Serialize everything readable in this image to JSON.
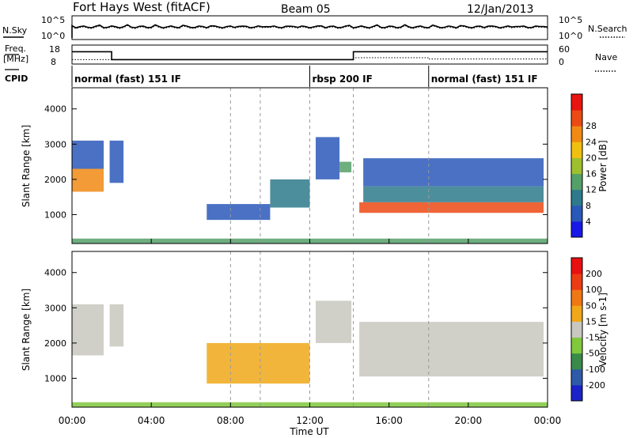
{
  "header": {
    "station": "Fort Hays West (fitACF)",
    "beam": "Beam 05",
    "date": "12/Jan/2013"
  },
  "chart_data": [
    {
      "type": "line",
      "panel": "noise",
      "left_label": "N.Sky",
      "left_ticks": [
        "10^5",
        "10^0"
      ],
      "right_label": "N.Search",
      "right_ticks": [
        "10^5",
        "10^0"
      ],
      "series": [
        {
          "name": "N.Sky",
          "style": "solid"
        },
        {
          "name": "N.Search",
          "style": "dotted"
        }
      ]
    },
    {
      "type": "line",
      "panel": "frequency",
      "left_label": "Freq.",
      "left_unit": "[MHz]",
      "left_ticks": [
        18,
        8
      ],
      "right_label": "Nave",
      "right_ticks": [
        60,
        0
      ],
      "freq_steps": [
        {
          "t0": 0.0,
          "t1": 2.0,
          "f": 14.5
        },
        {
          "t0": 2.0,
          "t1": 12.0,
          "f": 10.3
        },
        {
          "t0": 12.0,
          "t1": 14.2,
          "f": 10.3
        },
        {
          "t0": 14.2,
          "t1": 24.0,
          "f": 14.5
        }
      ],
      "nave_steps": [
        {
          "t0": 0.0,
          "t1": 2.0,
          "v": 14
        },
        {
          "t0": 2.0,
          "t1": 14.2,
          "v": 14
        },
        {
          "t0": 14.2,
          "t1": 18.0,
          "v": 20
        },
        {
          "t0": 18.0,
          "t1": 24.0,
          "v": 16
        }
      ]
    },
    {
      "type": "table",
      "panel": "cpid",
      "label": "CPID",
      "segments": [
        {
          "start": 0,
          "text": "normal (fast) 151 IF"
        },
        {
          "start": 12,
          "text": "rbsp 200 IF"
        },
        {
          "start": 18,
          "text": "normal (fast) 151 IF"
        }
      ]
    },
    {
      "type": "heatmap",
      "panel": "power",
      "ylabel": "Slant Range [km]",
      "yticks": [
        1000,
        2000,
        3000,
        4000
      ],
      "ylim": [
        180,
        4600
      ],
      "xlim": [
        0,
        24
      ],
      "colorbar": {
        "label": "Power [dB]",
        "ticks": [
          "4",
          "8",
          "12",
          "16",
          "20",
          "24",
          "28"
        ],
        "colors": [
          "#1818e8",
          "#2a58b8",
          "#2e7a8c",
          "#55a068",
          "#9ec02e",
          "#f0c010",
          "#f08a14",
          "#ec4a14",
          "#e81410"
        ]
      },
      "regions": [
        {
          "t0": 0.0,
          "t1": 1.6,
          "r0": 1650,
          "r1": 2300,
          "c": "#f08a14"
        },
        {
          "t0": 0.0,
          "t1": 1.6,
          "r0": 2300,
          "r1": 3100,
          "c": "#2a58b8"
        },
        {
          "t0": 1.9,
          "t1": 2.6,
          "r0": 1900,
          "r1": 3100,
          "c": "#2a58b8"
        },
        {
          "t0": 6.8,
          "t1": 10.0,
          "r0": 850,
          "r1": 1300,
          "c": "#2a58b8"
        },
        {
          "t0": 10.0,
          "t1": 12.0,
          "r0": 1200,
          "r1": 2000,
          "c": "#2e7a8c"
        },
        {
          "t0": 12.3,
          "t1": 13.5,
          "r0": 2000,
          "r1": 3200,
          "c": "#2a58b8"
        },
        {
          "t0": 13.5,
          "t1": 14.1,
          "r0": 2200,
          "r1": 2500,
          "c": "#55a068"
        },
        {
          "t0": 14.7,
          "t1": 23.8,
          "r0": 1800,
          "r1": 2600,
          "c": "#2a58b8"
        },
        {
          "t0": 14.7,
          "t1": 23.8,
          "r0": 1350,
          "r1": 1800,
          "c": "#2e7a8c"
        },
        {
          "t0": 14.5,
          "t1": 23.8,
          "r0": 1050,
          "r1": 1350,
          "c": "#ec4a14"
        },
        {
          "t0": 0.0,
          "t1": 24.0,
          "r0": 180,
          "r1": 320,
          "c": "#55a068"
        }
      ]
    },
    {
      "type": "heatmap",
      "panel": "velocity",
      "ylabel": "Slant Range [km]",
      "yticks": [
        1000,
        2000,
        3000,
        4000
      ],
      "ylim": [
        180,
        4600
      ],
      "xlim": [
        0,
        24
      ],
      "xticks": [
        "00:00",
        "04:00",
        "08:00",
        "12:00",
        "16:00",
        "20:00",
        "00:00"
      ],
      "xlabel": "Time UT",
      "colorbar": {
        "label": "Velocity [m s-1]",
        "ticks": [
          "200",
          "100",
          "50",
          "15",
          "-15",
          "-50",
          "-100",
          "-200"
        ],
        "colors": [
          "#1a22c8",
          "#2e5aa8",
          "#3a8a4a",
          "#80c83c",
          "#c8c8c0",
          "#f0a81a",
          "#f07814",
          "#ec3c14",
          "#e81010"
        ]
      },
      "regions": [
        {
          "t0": 0.0,
          "t1": 1.6,
          "r0": 1650,
          "r1": 3100,
          "c": "#c8c8c0"
        },
        {
          "t0": 1.9,
          "t1": 2.6,
          "r0": 1900,
          "r1": 3100,
          "c": "#c8c8c0"
        },
        {
          "t0": 6.8,
          "t1": 12.0,
          "r0": 850,
          "r1": 2000,
          "c": "#f0a81a"
        },
        {
          "t0": 12.3,
          "t1": 14.1,
          "r0": 2000,
          "r1": 3200,
          "c": "#c8c8c0"
        },
        {
          "t0": 14.5,
          "t1": 23.8,
          "r0": 1050,
          "r1": 2600,
          "c": "#c8c8c0"
        },
        {
          "t0": 0.0,
          "t1": 24.0,
          "r0": 180,
          "r1": 320,
          "c": "#80c83c"
        }
      ]
    }
  ]
}
